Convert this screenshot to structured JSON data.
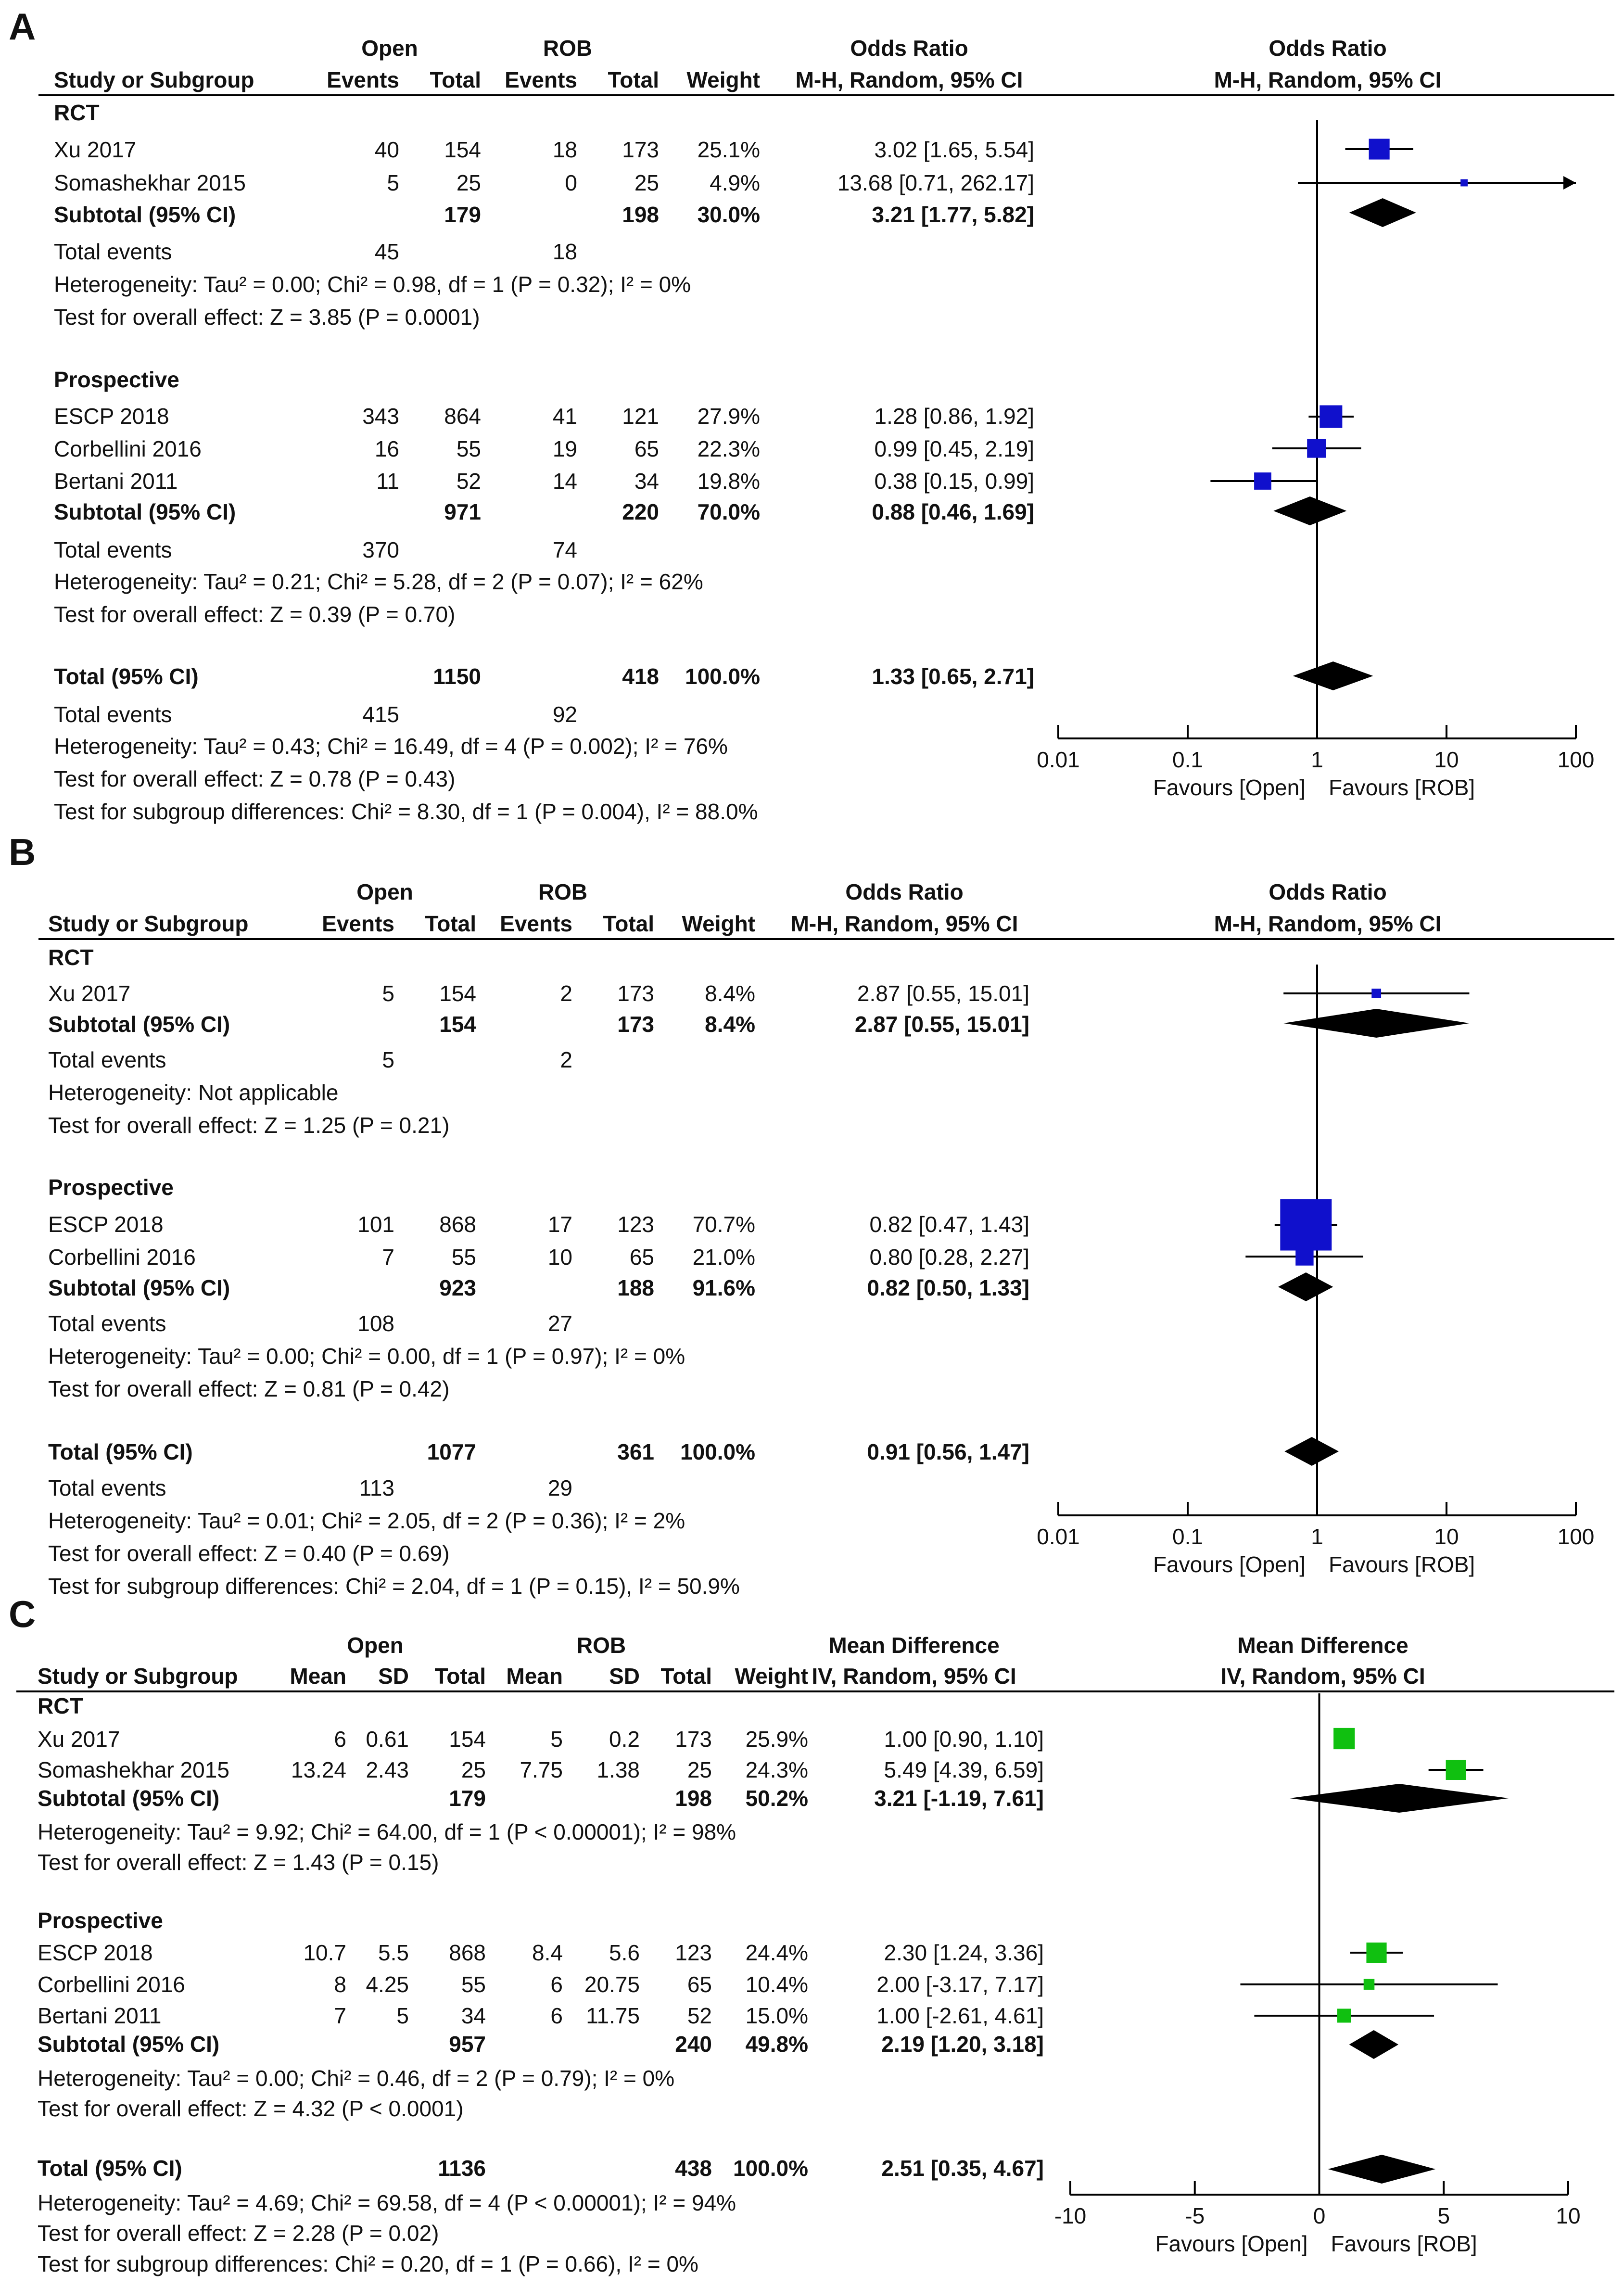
{
  "chart_data": [
    {
      "type": "forest",
      "panel": "A",
      "col_headers": {
        "group1": "Open",
        "group2": "ROB",
        "study": "Study or Subgroup",
        "events": "Events",
        "total": "Total",
        "weight": "Weight",
        "effect": "Odds Ratio",
        "method": "M-H, Random, 95% CI"
      },
      "scale": "log",
      "axis_ticks": [
        0.01,
        0.1,
        1,
        10,
        100
      ],
      "axis_tick_labels": [
        "0.01",
        "0.1",
        "1",
        "10",
        "100"
      ],
      "favours_left": "Favours [Open]",
      "favours_right": "Favours [ROB]",
      "marker_color": "#1010cc",
      "subgroups": [
        {
          "name": "RCT",
          "studies": [
            {
              "name": "Xu 2017",
              "c1": "40",
              "c2": "154",
              "c3": "18",
              "c4": "173",
              "weight": "25.1%",
              "ci_text": "3.02 [1.65, 5.54]",
              "est": 3.02,
              "lo": 1.65,
              "hi": 5.54
            },
            {
              "name": "Somashekhar 2015",
              "c1": "5",
              "c2": "25",
              "c3": "0",
              "c4": "25",
              "weight": "4.9%",
              "ci_text": "13.68 [0.71, 262.17]",
              "est": 13.68,
              "lo": 0.71,
              "hi": 262.17
            }
          ],
          "subtotal": {
            "label": "Subtotal (95% CI)",
            "n1": "179",
            "n2": "198",
            "weight": "30.0%",
            "ci_text": "3.21 [1.77, 5.82]",
            "est": 3.21,
            "lo": 1.77,
            "hi": 5.82
          },
          "events_label": "Total events",
          "events1": "45",
          "events2": "18",
          "heterogeneity": "Heterogeneity: Tau² = 0.00; Chi² = 0.98, df = 1 (P = 0.32); I² = 0%",
          "overall": "Test for overall effect: Z = 3.85 (P = 0.0001)"
        },
        {
          "name": "Prospective",
          "studies": [
            {
              "name": "ESCP 2018",
              "c1": "343",
              "c2": "864",
              "c3": "41",
              "c4": "121",
              "weight": "27.9%",
              "ci_text": "1.28 [0.86, 1.92]",
              "est": 1.28,
              "lo": 0.86,
              "hi": 1.92
            },
            {
              "name": "Corbellini 2016",
              "c1": "16",
              "c2": "55",
              "c3": "19",
              "c4": "65",
              "weight": "22.3%",
              "ci_text": "0.99 [0.45, 2.19]",
              "est": 0.99,
              "lo": 0.45,
              "hi": 2.19
            },
            {
              "name": "Bertani 2011",
              "c1": "11",
              "c2": "52",
              "c3": "14",
              "c4": "34",
              "weight": "19.8%",
              "ci_text": "0.38 [0.15, 0.99]",
              "est": 0.38,
              "lo": 0.15,
              "hi": 0.99
            }
          ],
          "subtotal": {
            "label": "Subtotal (95% CI)",
            "n1": "971",
            "n2": "220",
            "weight": "70.0%",
            "ci_text": "0.88 [0.46, 1.69]",
            "est": 0.88,
            "lo": 0.46,
            "hi": 1.69
          },
          "events_label": "Total events",
          "events1": "370",
          "events2": "74",
          "heterogeneity": "Heterogeneity: Tau² = 0.21; Chi² = 5.28, df = 2 (P = 0.07); I² = 62%",
          "overall": "Test for overall effect: Z = 0.39 (P = 0.70)"
        }
      ],
      "total": {
        "label": "Total (95% CI)",
        "n1": "1150",
        "n2": "418",
        "weight": "100.0%",
        "ci_text": "1.33 [0.65, 2.71]",
        "est": 1.33,
        "lo": 0.65,
        "hi": 2.71
      },
      "total_events_label": "Total events",
      "total_events1": "415",
      "total_events2": "92",
      "footer": [
        "Heterogeneity: Tau² = 0.43; Chi² = 16.49, df = 4 (P = 0.002); I² = 76%",
        "Test for overall effect: Z = 0.78 (P = 0.43)",
        "Test for subgroup differences: Chi² = 8.30, df = 1 (P = 0.004), I² = 88.0%"
      ]
    },
    {
      "type": "forest",
      "panel": "B",
      "col_headers": {
        "group1": "Open",
        "group2": "ROB",
        "study": "Study or Subgroup",
        "events": "Events",
        "total": "Total",
        "weight": "Weight",
        "effect": "Odds Ratio",
        "method": "M-H, Random, 95% CI"
      },
      "scale": "log",
      "axis_ticks": [
        0.01,
        0.1,
        1,
        10,
        100
      ],
      "axis_tick_labels": [
        "0.01",
        "0.1",
        "1",
        "10",
        "100"
      ],
      "favours_left": "Favours [Open]",
      "favours_right": "Favours [ROB]",
      "marker_color": "#1010cc",
      "subgroups": [
        {
          "name": "RCT",
          "studies": [
            {
              "name": "Xu 2017",
              "c1": "5",
              "c2": "154",
              "c3": "2",
              "c4": "173",
              "weight": "8.4%",
              "ci_text": "2.87 [0.55, 15.01]",
              "est": 2.87,
              "lo": 0.55,
              "hi": 15.01
            }
          ],
          "subtotal": {
            "label": "Subtotal (95% CI)",
            "n1": "154",
            "n2": "173",
            "weight": "8.4%",
            "ci_text": "2.87 [0.55, 15.01]",
            "est": 2.87,
            "lo": 0.55,
            "hi": 15.01
          },
          "events_label": "Total events",
          "events1": "5",
          "events2": "2",
          "heterogeneity": "Heterogeneity: Not applicable",
          "overall": "Test for overall effect: Z = 1.25 (P = 0.21)"
        },
        {
          "name": "Prospective",
          "studies": [
            {
              "name": "ESCP 2018",
              "c1": "101",
              "c2": "868",
              "c3": "17",
              "c4": "123",
              "weight": "70.7%",
              "ci_text": "0.82 [0.47, 1.43]",
              "est": 0.82,
              "lo": 0.47,
              "hi": 1.43
            },
            {
              "name": "Corbellini 2016",
              "c1": "7",
              "c2": "55",
              "c3": "10",
              "c4": "65",
              "weight": "21.0%",
              "ci_text": "0.80 [0.28, 2.27]",
              "est": 0.8,
              "lo": 0.28,
              "hi": 2.27
            }
          ],
          "subtotal": {
            "label": "Subtotal (95% CI)",
            "n1": "923",
            "n2": "188",
            "weight": "91.6%",
            "ci_text": "0.82 [0.50, 1.33]",
            "est": 0.82,
            "lo": 0.5,
            "hi": 1.33
          },
          "events_label": "Total events",
          "events1": "108",
          "events2": "27",
          "heterogeneity": "Heterogeneity: Tau² = 0.00; Chi² = 0.00, df = 1 (P = 0.97); I² = 0%",
          "overall": "Test for overall effect: Z = 0.81 (P = 0.42)"
        }
      ],
      "total": {
        "label": "Total (95% CI)",
        "n1": "1077",
        "n2": "361",
        "weight": "100.0%",
        "ci_text": "0.91 [0.56, 1.47]",
        "est": 0.91,
        "lo": 0.56,
        "hi": 1.47
      },
      "total_events_label": "Total events",
      "total_events1": "113",
      "total_events2": "29",
      "footer": [
        "Heterogeneity: Tau² = 0.01; Chi² = 2.05, df = 2 (P = 0.36); I² = 2%",
        "Test for overall effect: Z = 0.40 (P = 0.69)",
        "Test for subgroup differences: Chi² = 2.04, df = 1 (P = 0.15), I² = 50.9%"
      ]
    },
    {
      "type": "forest",
      "panel": "C",
      "col_headers": {
        "group1": "Open",
        "group2": "ROB",
        "study": "Study or Subgroup",
        "mean": "Mean",
        "sd": "SD",
        "total": "Total",
        "weight": "Weight",
        "effect": "Mean Difference",
        "method": "IV, Random, 95% CI"
      },
      "scale": "linear",
      "axis_ticks": [
        -10,
        -5,
        0,
        5,
        10
      ],
      "axis_tick_labels": [
        "-10",
        "-5",
        "0",
        "5",
        "10"
      ],
      "favours_left": "Favours [Open]",
      "favours_right": "Favours [ROB]",
      "marker_color": "#10c010",
      "subgroups": [
        {
          "name": "RCT",
          "studies": [
            {
              "name": "Xu 2017",
              "m1": "6",
              "s1": "0.61",
              "n1": "154",
              "m2": "5",
              "s2": "0.2",
              "n2": "173",
              "weight": "25.9%",
              "ci_text": "1.00 [0.90, 1.10]",
              "est": 1.0,
              "lo": 0.9,
              "hi": 1.1
            },
            {
              "name": "Somashekhar 2015",
              "m1": "13.24",
              "s1": "2.43",
              "n1": "25",
              "m2": "7.75",
              "s2": "1.38",
              "n2": "25",
              "weight": "24.3%",
              "ci_text": "5.49 [4.39, 6.59]",
              "est": 5.49,
              "lo": 4.39,
              "hi": 6.59
            }
          ],
          "subtotal": {
            "label": "Subtotal (95% CI)",
            "n1": "179",
            "n2": "198",
            "weight": "50.2%",
            "ci_text": "3.21 [-1.19, 7.61]",
            "est": 3.21,
            "lo": -1.19,
            "hi": 7.61
          },
          "heterogeneity": "Heterogeneity: Tau² = 9.92; Chi² = 64.00, df = 1 (P < 0.00001); I² = 98%",
          "overall": "Test for overall effect: Z = 1.43 (P = 0.15)"
        },
        {
          "name": "Prospective",
          "studies": [
            {
              "name": "ESCP 2018",
              "m1": "10.7",
              "s1": "5.5",
              "n1": "868",
              "m2": "8.4",
              "s2": "5.6",
              "n2": "123",
              "weight": "24.4%",
              "ci_text": "2.30 [1.24, 3.36]",
              "est": 2.3,
              "lo": 1.24,
              "hi": 3.36
            },
            {
              "name": "Corbellini 2016",
              "m1": "8",
              "s1": "4.25",
              "n1": "55",
              "m2": "6",
              "s2": "20.75",
              "n2": "65",
              "weight": "10.4%",
              "ci_text": "2.00 [-3.17, 7.17]",
              "est": 2.0,
              "lo": -3.17,
              "hi": 7.17
            },
            {
              "name": "Bertani 2011",
              "m1": "7",
              "s1": "5",
              "n1": "34",
              "m2": "6",
              "s2": "11.75",
              "n2": "52",
              "weight": "15.0%",
              "ci_text": "1.00 [-2.61, 4.61]",
              "est": 1.0,
              "lo": -2.61,
              "hi": 4.61
            }
          ],
          "subtotal": {
            "label": "Subtotal (95% CI)",
            "n1": "957",
            "n2": "240",
            "weight": "49.8%",
            "ci_text": "2.19 [1.20, 3.18]",
            "est": 2.19,
            "lo": 1.2,
            "hi": 3.18
          },
          "heterogeneity": "Heterogeneity: Tau² = 0.00; Chi² = 0.46, df = 2 (P = 0.79); I² = 0%",
          "overall": "Test for overall effect: Z = 4.32 (P < 0.0001)"
        }
      ],
      "total": {
        "label": "Total (95% CI)",
        "n1": "1136",
        "n2": "438",
        "weight": "100.0%",
        "ci_text": "2.51 [0.35, 4.67]",
        "est": 2.51,
        "lo": 0.35,
        "hi": 4.67
      },
      "footer": [
        "Heterogeneity: Tau² = 4.69; Chi² = 69.58, df = 4 (P < 0.00001); I² = 94%",
        "Test for overall effect: Z = 2.28 (P = 0.02)",
        "Test for subgroup differences: Chi² = 0.20, df = 1 (P = 0.66), I² = 0%"
      ]
    }
  ]
}
